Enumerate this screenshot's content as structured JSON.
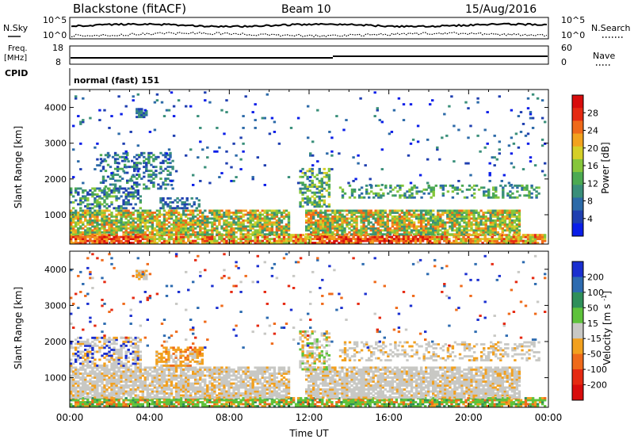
{
  "header": {
    "station": "Blackstone (fitACF)",
    "beam": "Beam 10",
    "date": "15/Aug/2016"
  },
  "top_panel": {
    "left_label": "N.Sky",
    "right_label": "N.Search",
    "ticks_left": [
      "10^5",
      "10^0"
    ],
    "ticks_right": [
      "10^5",
      "10^0"
    ]
  },
  "freq_panel": {
    "left_label_1": "Freq.",
    "left_label_2": "[MHz]",
    "right_label": "Nave",
    "ticks_left": [
      "18",
      "8"
    ],
    "ticks_right": [
      "60",
      "0"
    ]
  },
  "cpid_panel": {
    "label": "CPID",
    "value": "normal (fast) 151"
  },
  "chart_data": [
    {
      "type": "heatmap",
      "title": "",
      "xlabel": "",
      "ylabel": "Slant Range [km]",
      "yticks": [
        "1000",
        "2000",
        "3000",
        "4000"
      ],
      "ylim": [
        180,
        4500
      ],
      "colorbar_label": "Power [dB]",
      "colorbar_ticks": [
        "4",
        "8",
        "12",
        "16",
        "20",
        "24",
        "28"
      ],
      "colorbar_colors": [
        "#0a1ee8",
        "#1f3fb0",
        "#2c6aa8",
        "#3a8f7a",
        "#4caa52",
        "#86c63b",
        "#d5cf28",
        "#f2a21e",
        "#ef6a1a",
        "#e52a12",
        "#d80c0c"
      ]
    },
    {
      "type": "heatmap",
      "title": "",
      "xlabel": "Time UT",
      "ylabel": "Slant Range [km]",
      "xticks": [
        "00:00",
        "04:00",
        "08:00",
        "12:00",
        "16:00",
        "20:00",
        "00:00"
      ],
      "yticks": [
        "1000",
        "2000",
        "3000",
        "4000"
      ],
      "ylim": [
        180,
        4500
      ],
      "colorbar_label": "Velocity [m s^-1]",
      "colorbar_ticks": [
        "200",
        "100",
        "50",
        "15",
        "-15",
        "-50",
        "-100",
        "-200"
      ],
      "colorbar_colors": [
        "#1a2fd0",
        "#2d6bb0",
        "#2f8f5a",
        "#5ec23b",
        "#c8c8c4",
        "#f2a01e",
        "#ef6a1a",
        "#e52a12",
        "#d80c0c"
      ]
    }
  ]
}
